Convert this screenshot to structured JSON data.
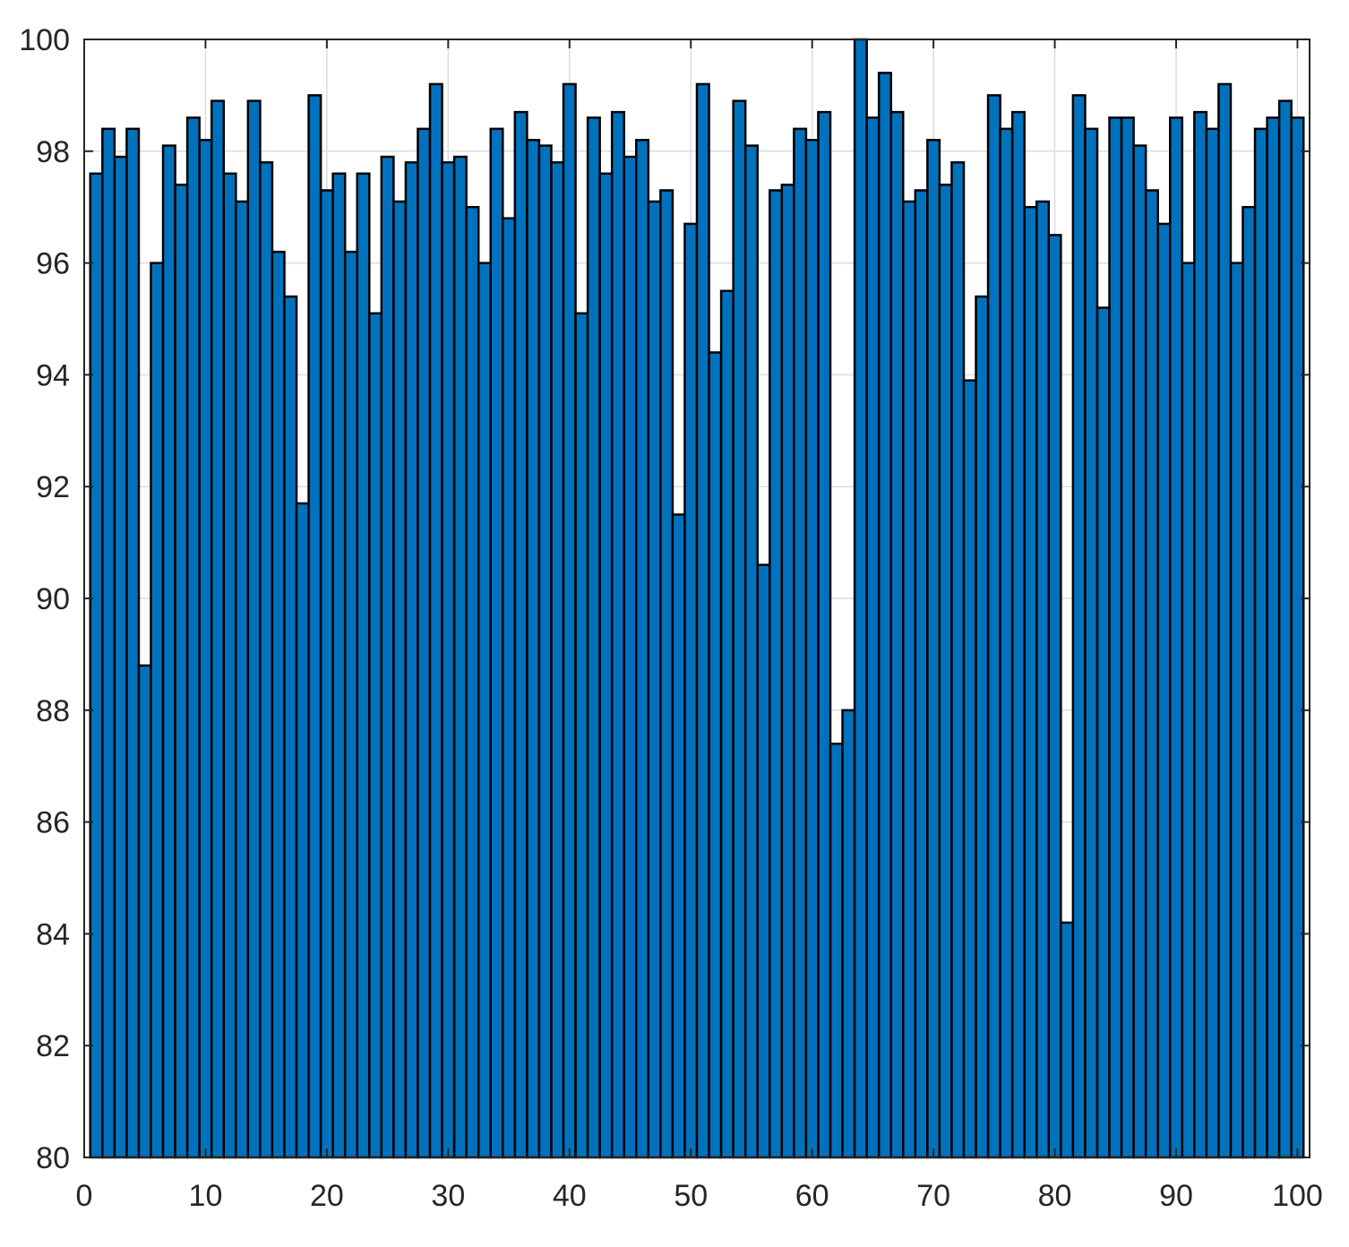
{
  "chart_data": {
    "type": "bar",
    "title": "",
    "xlabel": "",
    "ylabel": "",
    "xlim": [
      0,
      101
    ],
    "ylim": [
      80,
      100
    ],
    "grid": true,
    "legend": "none",
    "bar_color": "#0072BD",
    "edge_color": "#000000",
    "grid_color": "#dcdcdc",
    "x_ticks": [
      0,
      10,
      20,
      30,
      40,
      50,
      60,
      70,
      80,
      90,
      100
    ],
    "y_ticks": [
      80,
      82,
      84,
      86,
      88,
      90,
      92,
      94,
      96,
      98,
      100
    ],
    "x_tick_labels": [
      "0",
      "10",
      "20",
      "30",
      "40",
      "50",
      "60",
      "70",
      "80",
      "90",
      "100"
    ],
    "y_tick_labels": [
      "80",
      "82",
      "84",
      "86",
      "88",
      "90",
      "92",
      "94",
      "96",
      "98",
      "100"
    ],
    "x": [
      1,
      2,
      3,
      4,
      5,
      6,
      7,
      8,
      9,
      10,
      11,
      12,
      13,
      14,
      15,
      16,
      17,
      18,
      19,
      20,
      21,
      22,
      23,
      24,
      25,
      26,
      27,
      28,
      29,
      30,
      31,
      32,
      33,
      34,
      35,
      36,
      37,
      38,
      39,
      40,
      41,
      42,
      43,
      44,
      45,
      46,
      47,
      48,
      49,
      50,
      51,
      52,
      53,
      54,
      55,
      56,
      57,
      58,
      59,
      60,
      61,
      62,
      63,
      64,
      65,
      66,
      67,
      68,
      69,
      70,
      71,
      72,
      73,
      74,
      75,
      76,
      77,
      78,
      79,
      80,
      81,
      82,
      83,
      84,
      85,
      86,
      87,
      88,
      89,
      90,
      91,
      92,
      93,
      94,
      95,
      96,
      97,
      98,
      99,
      100
    ],
    "values": [
      97.6,
      98.4,
      97.9,
      98.4,
      88.8,
      96.0,
      98.1,
      97.4,
      98.6,
      98.2,
      98.9,
      97.6,
      97.1,
      98.9,
      97.8,
      96.2,
      95.4,
      91.7,
      99.0,
      97.3,
      97.6,
      96.2,
      97.6,
      95.1,
      97.9,
      97.1,
      97.8,
      98.4,
      99.2,
      97.8,
      97.9,
      97.0,
      96.0,
      98.4,
      96.8,
      98.7,
      98.2,
      98.1,
      97.8,
      99.2,
      95.1,
      98.6,
      97.6,
      98.7,
      97.9,
      98.2,
      97.1,
      97.3,
      91.5,
      96.7,
      99.2,
      94.4,
      95.5,
      98.9,
      98.1,
      90.6,
      97.3,
      97.4,
      98.4,
      98.2,
      98.7,
      87.4,
      88.0,
      100.0,
      98.6,
      99.4,
      98.7,
      97.1,
      97.3,
      98.2,
      97.4,
      97.8,
      93.9,
      95.4,
      99.0,
      98.4,
      98.7,
      97.0,
      97.1,
      96.5,
      84.2,
      99.0,
      98.4,
      95.2,
      98.6,
      98.6,
      98.1,
      97.3,
      96.7,
      98.6,
      96.0,
      98.7,
      98.4,
      99.2,
      96.0,
      97.0,
      98.4,
      98.6,
      98.9,
      98.6
    ]
  }
}
